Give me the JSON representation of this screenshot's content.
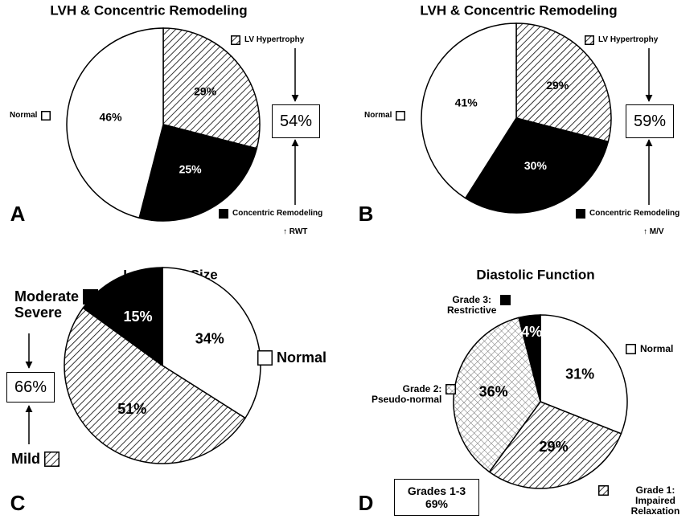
{
  "chart_data": [
    {
      "type": "pie",
      "panel": "A",
      "title": "LVH & Concentric Remodeling",
      "categories": [
        "LV Hypertrophy",
        "Concentric Remodeling",
        "Normal"
      ],
      "values": [
        29,
        25,
        46
      ],
      "value_labels": [
        "29%",
        "25%",
        "46%"
      ],
      "fills": [
        "hatch",
        "solid",
        "none"
      ],
      "color": "#000000",
      "total_label": "54%",
      "note": "↑ RWT"
    },
    {
      "type": "pie",
      "panel": "B",
      "title": "LVH & Concentric Remodeling",
      "categories": [
        "LV Hypertrophy",
        "Concentric Remodeling",
        "Normal"
      ],
      "values": [
        29,
        30,
        41
      ],
      "value_labels": [
        "29%",
        "30%",
        "41%"
      ],
      "fills": [
        "hatch",
        "solid",
        "none"
      ],
      "color": "#000000",
      "total_label": "59%",
      "note": "↑ M/V"
    },
    {
      "type": "pie",
      "panel": "C",
      "title": "Left Atrial Size",
      "categories": [
        "Normal",
        "Mild",
        "Moderate\nSevere"
      ],
      "values": [
        34,
        51,
        15
      ],
      "value_labels": [
        "34%",
        "51%",
        "15%"
      ],
      "fills": [
        "none",
        "hatch",
        "solid"
      ],
      "color": "#000000",
      "total_label": "66%"
    },
    {
      "type": "pie",
      "panel": "D",
      "title": "Diastolic Function",
      "categories": [
        "Normal",
        "Grade 1:\nImpaired Relaxation",
        "Grade 2:\nPseudo-normal",
        "Grade 3:\nRestrictive"
      ],
      "values": [
        31,
        29,
        36,
        4
      ],
      "value_labels": [
        "31%",
        "29%",
        "36%",
        "4%"
      ],
      "fills": [
        "none",
        "hatch",
        "crosshatch",
        "solid"
      ],
      "color": "#000000",
      "total_label": "Grades 1-3\n69%"
    }
  ]
}
